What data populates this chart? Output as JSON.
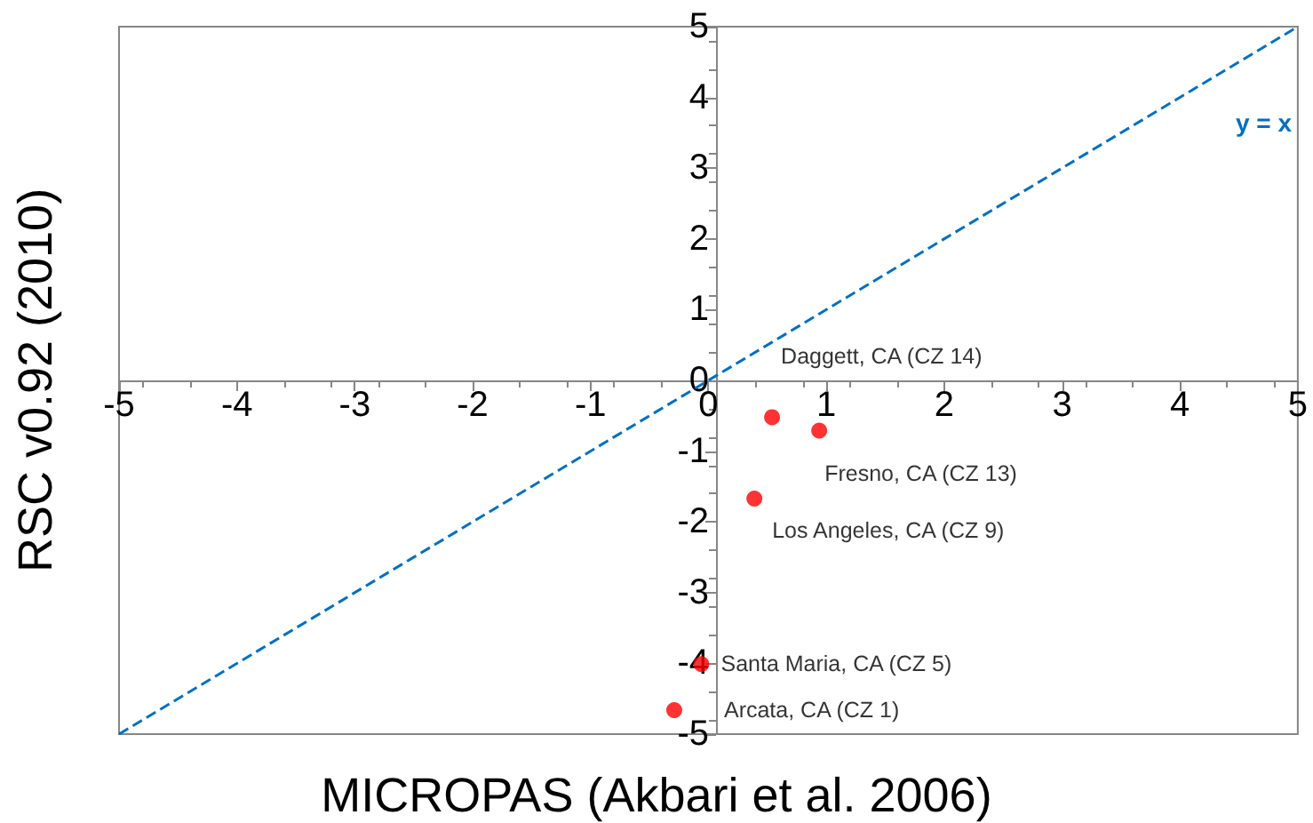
{
  "chart_data": {
    "type": "scatter",
    "xlabel": "MICROPAS (Akbari et al. 2006)",
    "ylabel": "RSC v0.92 (2010)",
    "xlim": [
      -5,
      5
    ],
    "ylim": [
      -5,
      5
    ],
    "xticks": [
      -5,
      -4,
      -3,
      -2,
      -1,
      0,
      1,
      2,
      3,
      4,
      5
    ],
    "yticks": [
      -5,
      -4,
      -3,
      -2,
      -1,
      0,
      1,
      2,
      3,
      4,
      5
    ],
    "grid": false,
    "series": [
      {
        "color": "#ff0000",
        "marker": "circle",
        "x": [
          0.54,
          0.94,
          0.39,
          -0.06,
          -0.29
        ],
        "values": [
          -0.52,
          -0.71,
          -1.67,
          -4.01,
          -4.66
        ]
      },
      {
        "type": "line",
        "name": "y = x",
        "color": "#0070c0",
        "line_style": "dashed",
        "marker": "none",
        "x": [
          -5,
          5
        ],
        "values": [
          -5,
          5
        ]
      }
    ],
    "annotations": [
      {
        "text": "Daggett, CA (CZ 14)",
        "x": 0.54,
        "y": -0.52
      },
      {
        "text": "Fresno, CA (CZ 13)",
        "x": 0.94,
        "y": -0.71
      },
      {
        "text": "Los Angeles, CA (CZ 9)",
        "x": 0.39,
        "y": -1.67
      },
      {
        "text": "Santa Maria, CA (CZ 5)",
        "x": -0.06,
        "y": -4.01
      },
      {
        "text": "Arcata, CA (CZ 1)",
        "x": -0.29,
        "y": -4.66
      }
    ]
  }
}
